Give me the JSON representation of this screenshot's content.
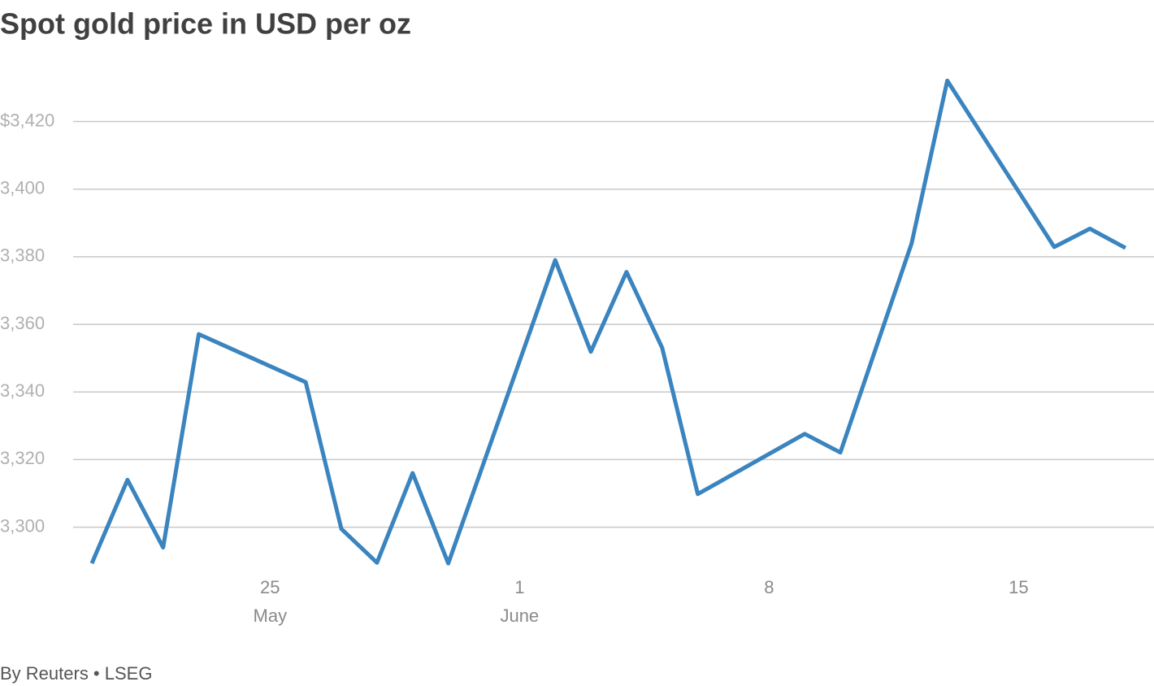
{
  "chart_data": {
    "type": "line",
    "title": "Spot gold price in USD per oz",
    "source": "By Reuters • LSEG",
    "x": [
      "May 20",
      "May 21",
      "May 22",
      "May 23",
      "May 26",
      "May 27",
      "May 28",
      "May 29",
      "May 30",
      "Jun 2",
      "Jun 3",
      "Jun 4",
      "Jun 5",
      "Jun 6",
      "Jun 9",
      "Jun 10",
      "Jun 12",
      "Jun 13",
      "Jun 16",
      "Jun 17",
      "Jun 18"
    ],
    "series": [
      {
        "name": "Spot gold",
        "color": "#3a84bf",
        "values": [
          3289.3,
          3314.0,
          3294.0,
          3357.1,
          3342.9,
          3299.5,
          3289.5,
          3316.0,
          3289.3,
          3379.0,
          3351.9,
          3375.5,
          3353.1,
          3309.8,
          3327.6,
          3322.1,
          3384.0,
          3432.1,
          3382.9,
          3388.3,
          3382.6
        ]
      }
    ],
    "ylim": [
      3285,
      3436
    ],
    "yticks": [
      {
        "value": 3300,
        "label": "3,300"
      },
      {
        "value": 3320,
        "label": "3,320"
      },
      {
        "value": 3340,
        "label": "3,340"
      },
      {
        "value": 3360,
        "label": "3,360"
      },
      {
        "value": 3380,
        "label": "3,380"
      },
      {
        "value": 3400,
        "label": "3,400"
      },
      {
        "value": 3420,
        "label": "$3,420"
      }
    ],
    "xticks": [
      {
        "value": "May 25",
        "label": "25",
        "month": "May"
      },
      {
        "value": "Jun 1",
        "label": "1",
        "month": "June"
      },
      {
        "value": "Jun 8",
        "label": "8"
      },
      {
        "value": "Jun 15",
        "label": "15"
      }
    ],
    "grid": true
  }
}
